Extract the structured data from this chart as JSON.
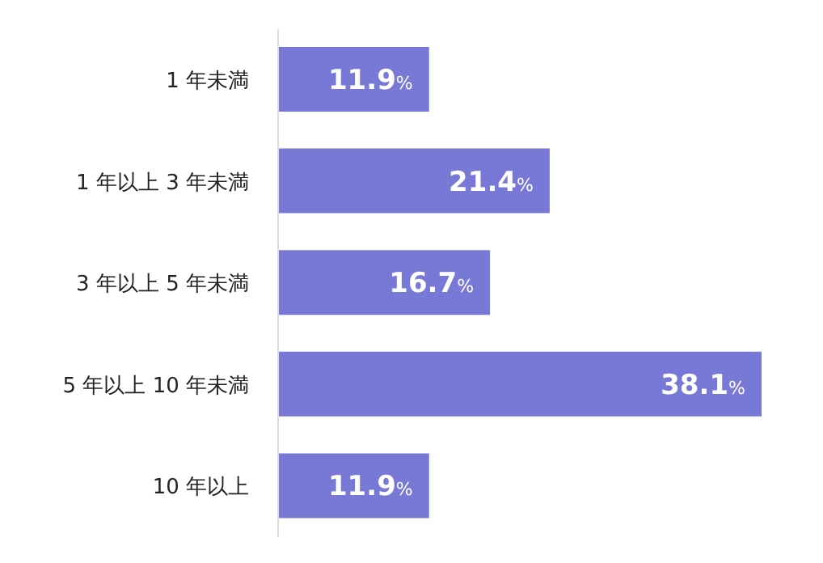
{
  "chart_data": {
    "type": "bar",
    "orientation": "horizontal",
    "categories": [
      "1 年未満",
      "1 年以上 3 年未満",
      "3 年以上 5 年未満",
      "5 年以上 10 年未満",
      "10 年以上"
    ],
    "values": [
      11.9,
      21.4,
      16.7,
      38.1,
      11.9
    ],
    "value_labels": [
      "11.9%",
      "21.4%",
      "16.7%",
      "38.1%",
      "11.9%"
    ],
    "color": "#7878d6"
  }
}
